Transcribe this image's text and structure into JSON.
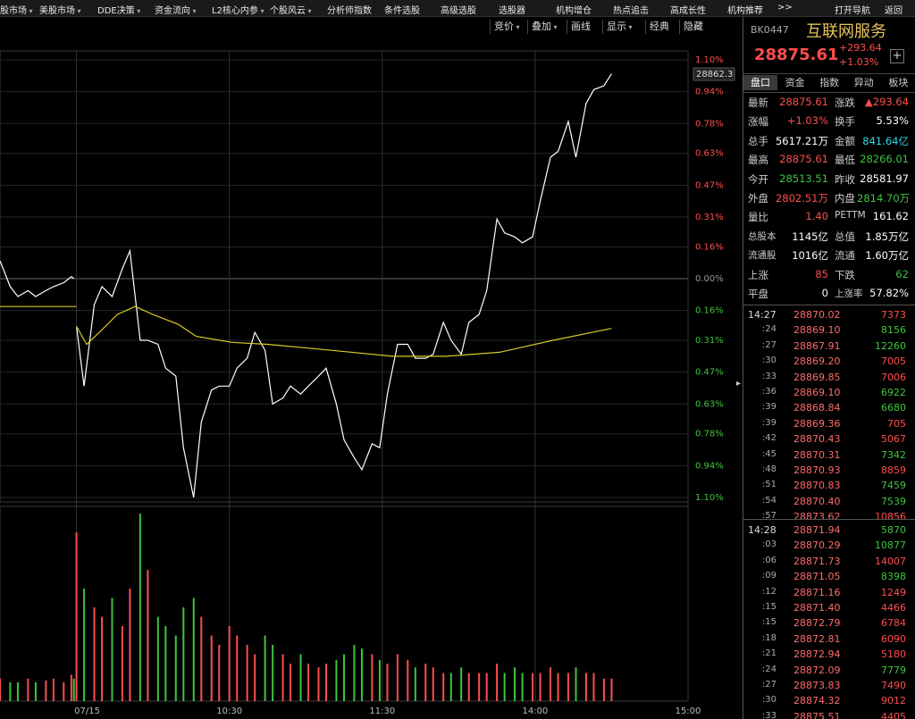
{
  "menu": [
    "股市场",
    "美股市场",
    "DDE决策",
    "资金流向",
    "L2核心内参",
    "个股风云",
    "分析师指数",
    "条件选股",
    "高级选股",
    "选股器",
    "机构增仓",
    "热点追击",
    "高成长性",
    "机构推荐",
    ">>",
    "打开导航",
    "返回"
  ],
  "toolbar": [
    "竞价",
    "叠加",
    "画线",
    "显示",
    "经典",
    "隐藏"
  ],
  "chart": {
    "type": "line",
    "xlim": [
      -30,
      240
    ],
    "ylim": [
      -1.1,
      1.1
    ],
    "up_color": "#ff4d4d",
    "down_color": "#3ec43e",
    "zero_color": "#9a9a9a",
    "yticks": [
      {
        "value": 1.1,
        "label": "1.10%"
      },
      {
        "value": 0.94,
        "label": "0.94%"
      },
      {
        "value": 0.78,
        "label": "0.78%"
      },
      {
        "value": 0.63,
        "label": "0.63%"
      },
      {
        "value": 0.47,
        "label": "0.47%"
      },
      {
        "value": 0.31,
        "label": "0.31%"
      },
      {
        "value": 0.16,
        "label": "0.16%"
      },
      {
        "value": 0,
        "label": "0.00%"
      },
      {
        "value": -0.16,
        "label": "0.16%"
      },
      {
        "value": -0.31,
        "label": "0.31%"
      },
      {
        "value": -0.47,
        "label": "0.47%"
      },
      {
        "value": -0.63,
        "label": "0.63%"
      },
      {
        "value": -0.78,
        "label": "0.78%"
      },
      {
        "value": -0.94,
        "label": "0.94%"
      },
      {
        "value": -1.1,
        "label": "1.10%"
      }
    ],
    "xticks": [
      {
        "value": 0,
        "label": "07/15"
      },
      {
        "value": 60,
        "label": "10:30"
      },
      {
        "value": 120,
        "label": "11:30"
      },
      {
        "value": 180,
        "label": "14:00"
      },
      {
        "value": 240,
        "label": "15:00"
      }
    ],
    "price_marker": 28862.3,
    "series": [
      {
        "color": "#ffffff",
        "x": [
          0,
          3,
          7,
          10,
          14,
          18,
          21,
          25,
          28,
          32,
          35,
          39,
          42,
          46,
          49,
          53,
          56,
          60,
          63,
          67,
          70,
          74,
          77,
          81,
          84,
          88,
          91,
          95,
          98,
          102,
          105,
          109,
          112,
          116,
          119,
          122,
          126,
          130,
          133,
          137,
          140,
          144,
          147,
          151,
          154,
          158,
          161,
          165,
          168,
          172,
          175,
          179,
          182,
          186,
          189,
          193,
          196,
          200,
          203,
          207,
          210
        ],
        "values": [
          -0.24,
          -0.54,
          -0.13,
          -0.04,
          -0.09,
          0.05,
          0.14,
          -0.31,
          -0.31,
          -0.33,
          -0.45,
          -0.49,
          -0.85,
          -1.1,
          -0.72,
          -0.56,
          -0.54,
          -0.54,
          -0.45,
          -0.4,
          -0.27,
          -0.36,
          -0.63,
          -0.6,
          -0.54,
          -0.58,
          -0.54,
          -0.49,
          -0.45,
          -0.63,
          -0.81,
          -0.9,
          -0.96,
          -0.83,
          -0.85,
          -0.58,
          -0.33,
          -0.33,
          -0.4,
          -0.4,
          -0.38,
          -0.22,
          -0.31,
          -0.38,
          -0.22,
          -0.18,
          -0.06,
          0.3,
          0.23,
          0.21,
          0.18,
          0.21,
          0.39,
          0.61,
          0.64,
          0.79,
          0.61,
          0.88,
          0.95,
          0.97,
          1.03
        ],
        "volume": [
          90,
          60,
          50,
          45,
          55,
          40,
          60,
          100,
          70,
          45,
          40,
          35,
          50,
          55,
          45,
          35,
          30,
          40,
          35,
          30,
          25,
          35,
          30,
          25,
          20,
          25,
          20,
          18,
          20,
          22,
          25,
          30,
          28,
          25,
          22,
          20,
          25,
          22,
          18,
          20,
          18,
          15,
          15,
          18,
          15,
          15,
          15,
          20,
          15,
          18,
          15,
          15,
          15,
          18,
          15,
          15,
          18,
          15,
          15,
          12,
          12
        ]
      },
      {
        "color": "#ffffff",
        "x": [
          -30,
          -26,
          -23,
          -19,
          -16,
          -12,
          -9,
          -5,
          -2,
          -1
        ],
        "values": [
          0.09,
          -0.04,
          -0.09,
          -0.06,
          -0.09,
          -0.06,
          -0.04,
          -0.02,
          0.01,
          0
        ],
        "volume": [
          12,
          10,
          10,
          12,
          10,
          11,
          12,
          10,
          14,
          12
        ]
      },
      {
        "color": "#d8c828",
        "x": [
          0,
          4,
          9,
          16,
          23,
          30,
          40,
          47,
          61,
          75,
          100,
          124,
          145,
          166,
          187,
          210
        ],
        "values": [
          -0.24,
          -0.33,
          -0.27,
          -0.18,
          -0.14,
          -0.18,
          -0.23,
          -0.29,
          -0.32,
          -0.33,
          -0.36,
          -0.39,
          -0.39,
          -0.37,
          -0.31,
          -0.25
        ]
      },
      {
        "color": "#d8c828",
        "x": [
          -30,
          0
        ],
        "values": [
          -0.14,
          -0.14
        ]
      }
    ]
  },
  "quote": {
    "code": "BK0447",
    "name": "互联网服务",
    "last": "28875.61",
    "change": "+293.64",
    "change_pct": "+1.03%",
    "tabs": [
      "盘口",
      "资金",
      "指数",
      "异动",
      "板块"
    ],
    "rows": [
      [
        {
          "label": "最新",
          "value": "28875.61",
          "color": "#ff4d4d"
        },
        {
          "label": "涨跌",
          "value": "▲293.64",
          "color": "#ff4d4d"
        }
      ],
      [
        {
          "label": "涨幅",
          "value": "+1.03%",
          "color": "#ff4d4d"
        },
        {
          "label": "换手",
          "value": "5.53%",
          "color": "#ffffff"
        }
      ],
      [
        {
          "label": "总手",
          "value": "5617.21万",
          "color": "#ffffff"
        },
        {
          "label": "金额",
          "value": "841.64亿",
          "color": "#2bd9e6"
        }
      ],
      [
        {
          "label": "最高",
          "value": "28875.61",
          "color": "#ff4d4d"
        },
        {
          "label": "最低",
          "value": "28266.01",
          "color": "#3ec43e"
        }
      ],
      [
        {
          "label": "今开",
          "value": "28513.51",
          "color": "#3ec43e"
        },
        {
          "label": "昨收",
          "value": "28581.97",
          "color": "#ffffff"
        }
      ],
      [
        {
          "label": "外盘",
          "value": "2802.51万",
          "color": "#ff4d4d"
        },
        {
          "label": "内盘",
          "value": "2814.70万",
          "color": "#3ec43e"
        }
      ],
      [
        {
          "label": "量比",
          "value": "1.40",
          "color": "#ff4d4d"
        },
        {
          "label": "PETTM",
          "value": "161.62",
          "color": "#ffffff"
        }
      ],
      [
        {
          "label": "总股本",
          "value": "1145亿",
          "color": "#ffffff"
        },
        {
          "label": "总值",
          "value": "1.85万亿",
          "color": "#ffffff"
        }
      ],
      [
        {
          "label": "流通股",
          "value": "1016亿",
          "color": "#ffffff"
        },
        {
          "label": "流通",
          "value": "1.60万亿",
          "color": "#ffffff"
        }
      ],
      [
        {
          "label": "上涨",
          "value": "85",
          "color": "#ff4d4d"
        },
        {
          "label": "下跌",
          "value": "62",
          "color": "#3ec43e"
        }
      ],
      [
        {
          "label": "平盘",
          "value": "0",
          "color": "#ffffff"
        },
        {
          "label": "上涨率",
          "value": "57.82%",
          "color": "#ffffff"
        }
      ]
    ]
  },
  "ticks": [
    {
      "time": "14:27",
      "rows": [
        {
          "time": ":24",
          "price": "28869.10",
          "volume": "8156",
          "color": "#3ec43e"
        },
        {
          "time": ":27",
          "price": "28867.91",
          "volume": "12260",
          "color": "#3ec43e"
        },
        {
          "time": ":30",
          "price": "28869.20",
          "volume": "7005",
          "color": "#ff4d4d"
        },
        {
          "time": ":33",
          "price": "28869.85",
          "volume": "7006",
          "color": "#ff4d4d"
        },
        {
          "time": ":36",
          "price": "28869.10",
          "volume": "6922",
          "color": "#3ec43e"
        },
        {
          "time": ":39",
          "price": "28868.84",
          "volume": "6680",
          "color": "#3ec43e"
        },
        {
          "time": ":39",
          "price": "28869.36",
          "volume": "705",
          "color": "#ff4d4d"
        },
        {
          "time": ":42",
          "price": "28870.43",
          "volume": "5067",
          "color": "#ff4d4d"
        },
        {
          "time": ":45",
          "price": "28870.31",
          "volume": "7342",
          "color": "#3ec43e"
        },
        {
          "time": ":48",
          "price": "28870.93",
          "volume": "8859",
          "color": "#ff4d4d"
        },
        {
          "time": ":51",
          "price": "28870.83",
          "volume": "7459",
          "color": "#3ec43e"
        },
        {
          "time": ":54",
          "price": "28870.40",
          "volume": "7539",
          "color": "#3ec43e"
        },
        {
          "time": ":57",
          "price": "28873.62",
          "volume": "10856",
          "color": "#ff4d4d"
        }
      ],
      "price": "28870.02",
      "volume": "7373",
      "color": "#ff4d4d"
    },
    {
      "time": "14:28",
      "rows": [
        {
          "time": ":03",
          "price": "28870.29",
          "volume": "10877",
          "color": "#3ec43e"
        },
        {
          "time": ":06",
          "price": "28871.73",
          "volume": "14007",
          "color": "#ff4d4d"
        },
        {
          "time": ":09",
          "price": "28871.05",
          "volume": "8398",
          "color": "#3ec43e"
        },
        {
          "time": ":12",
          "price": "28871.16",
          "volume": "1249",
          "color": "#ff4d4d"
        },
        {
          "time": ":15",
          "price": "28871.40",
          "volume": "4466",
          "color": "#ff4d4d"
        },
        {
          "time": ":15",
          "price": "28872.79",
          "volume": "6784",
          "color": "#ff4d4d"
        },
        {
          "time": ":18",
          "price": "28872.81",
          "volume": "6090",
          "color": "#ff4d4d"
        },
        {
          "time": ":21",
          "price": "28872.94",
          "volume": "5180",
          "color": "#ff4d4d"
        },
        {
          "time": ":24",
          "price": "28872.09",
          "volume": "7779",
          "color": "#3ec43e"
        },
        {
          "time": ":27",
          "price": "28873.83",
          "volume": "7490",
          "color": "#ff4d4d"
        },
        {
          "time": ":30",
          "price": "28874.32",
          "volume": "9012",
          "color": "#ff4d4d"
        },
        {
          "time": ":33",
          "price": "28875.51",
          "volume": "4405",
          "color": "#ff4d4d"
        }
      ],
      "price": "28871.94",
      "volume": "5870",
      "color": "#3ec43e"
    }
  ]
}
